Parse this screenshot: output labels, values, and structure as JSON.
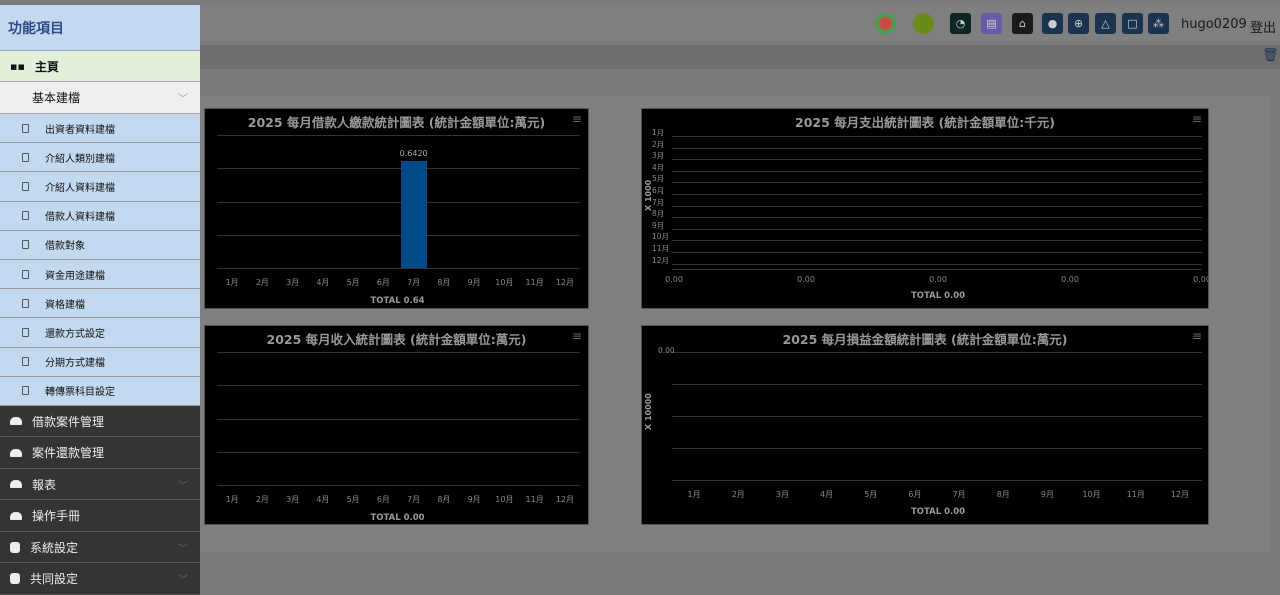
{
  "header": {
    "user": "hugo0209",
    "logout": "登出",
    "icons": [
      "colorful-logo-icon",
      "green-logo-icon",
      "clock-app-icon",
      "scroll-app-icon",
      "teacher-app-icon",
      "palette-icon",
      "globe-icon",
      "bell-icon",
      "lock-icon",
      "sitemap-icon"
    ]
  },
  "sidebar": {
    "title": "功能項目",
    "home": "主頁",
    "group": "基本建檔",
    "sub_items": [
      "出資者資料建檔",
      "介紹人類別建檔",
      "介紹人資料建檔",
      "借款人資料建檔",
      "借款對象",
      "資金用途建檔",
      "資格建檔",
      "還款方式設定",
      "分期方式建檔",
      "轉傳票科目設定"
    ],
    "dark_items": [
      {
        "label": "借款案件管理",
        "icon": "briefcase-icon",
        "chev": false
      },
      {
        "label": "案件還款管理",
        "icon": "briefcase-icon",
        "chev": false
      },
      {
        "label": "報表",
        "icon": "briefcase-icon",
        "chev": true
      },
      {
        "label": "操作手冊",
        "icon": "briefcase-icon",
        "chev": false
      },
      {
        "label": "系統設定",
        "icon": "hexagon-icon",
        "chev": true
      },
      {
        "label": "共同設定",
        "icon": "hexagon-icon",
        "chev": true
      }
    ]
  },
  "chart_data": [
    {
      "type": "bar",
      "title": "2025 每月借款人繳款統計圖表 (統計金額單位:萬元)",
      "categories": [
        "1月",
        "2月",
        "3月",
        "4月",
        "5月",
        "6月",
        "7月",
        "8月",
        "9月",
        "10月",
        "11月",
        "12月"
      ],
      "values": [
        0,
        0,
        0,
        0,
        0,
        0,
        0.642,
        0,
        0,
        0,
        0,
        0
      ],
      "data_labels": {
        "7月": "0.6420"
      },
      "total": "TOTAL 0.64",
      "bar_color": "#004b87",
      "ylim": [
        0,
        0.8
      ]
    },
    {
      "type": "bar",
      "orientation": "horizontal",
      "title": "2025 每月支出統計圖表 (統計金額單位:千元)",
      "categories": [
        "1月",
        "2月",
        "3月",
        "4月",
        "5月",
        "6月",
        "7月",
        "8月",
        "9月",
        "10月",
        "11月",
        "12月"
      ],
      "values": [
        0,
        0,
        0,
        0,
        0,
        0,
        0,
        0,
        0,
        0,
        0,
        0
      ],
      "xticks": [
        "0.00",
        "0.00",
        "0.00",
        "0.00",
        "0.00"
      ],
      "ylabel": "X 1000",
      "total": "TOTAL 0.00"
    },
    {
      "type": "bar",
      "title": "2025 每月收入統計圖表 (統計金額單位:萬元)",
      "categories": [
        "1月",
        "2月",
        "3月",
        "4月",
        "5月",
        "6月",
        "7月",
        "8月",
        "9月",
        "10月",
        "11月",
        "12月"
      ],
      "values": [
        0,
        0,
        0,
        0,
        0,
        0,
        0,
        0,
        0,
        0,
        0,
        0
      ],
      "total": "TOTAL 0.00"
    },
    {
      "type": "bar",
      "title": "2025 每月損益金額統計圖表 (統計金額單位:萬元)",
      "categories": [
        "1月",
        "2月",
        "3月",
        "4月",
        "5月",
        "6月",
        "7月",
        "8月",
        "9月",
        "10月",
        "11月",
        "12月"
      ],
      "values": [
        0,
        0,
        0,
        0,
        0,
        0,
        0,
        0,
        0,
        0,
        0,
        0
      ],
      "yticks": [
        "0.00"
      ],
      "ylabel": "X 10000",
      "total": "TOTAL 0.00"
    }
  ]
}
